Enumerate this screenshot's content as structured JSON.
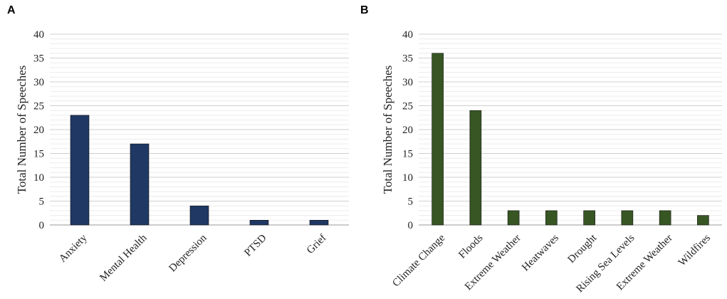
{
  "chart_data": [
    {
      "type": "bar",
      "panel_label": "A",
      "ylabel": "Total Number of Speeches",
      "xlabel": "",
      "ylim": [
        0,
        40
      ],
      "yticks": [
        0,
        5,
        10,
        15,
        20,
        25,
        30,
        35,
        40
      ],
      "grid": true,
      "bar_color": "#1f3864",
      "categories": [
        "Anxiety",
        "Mental Health",
        "Depression",
        "PTSD",
        "Grief"
      ],
      "values": [
        23,
        17,
        4,
        1,
        1
      ]
    },
    {
      "type": "bar",
      "panel_label": "B",
      "ylabel": "Total Number of Speeches",
      "xlabel": "",
      "ylim": [
        0,
        40
      ],
      "yticks": [
        0,
        5,
        10,
        15,
        20,
        25,
        30,
        35,
        40
      ],
      "grid": true,
      "bar_color": "#375623",
      "categories": [
        "Climate Change",
        "Floods",
        "Extreme Weather",
        "Heatwaves",
        "Drought",
        "Rising Sea Levels",
        "Extreme Weather",
        "Wildfires"
      ],
      "values": [
        36,
        24,
        3,
        3,
        3,
        3,
        3,
        2
      ]
    }
  ]
}
